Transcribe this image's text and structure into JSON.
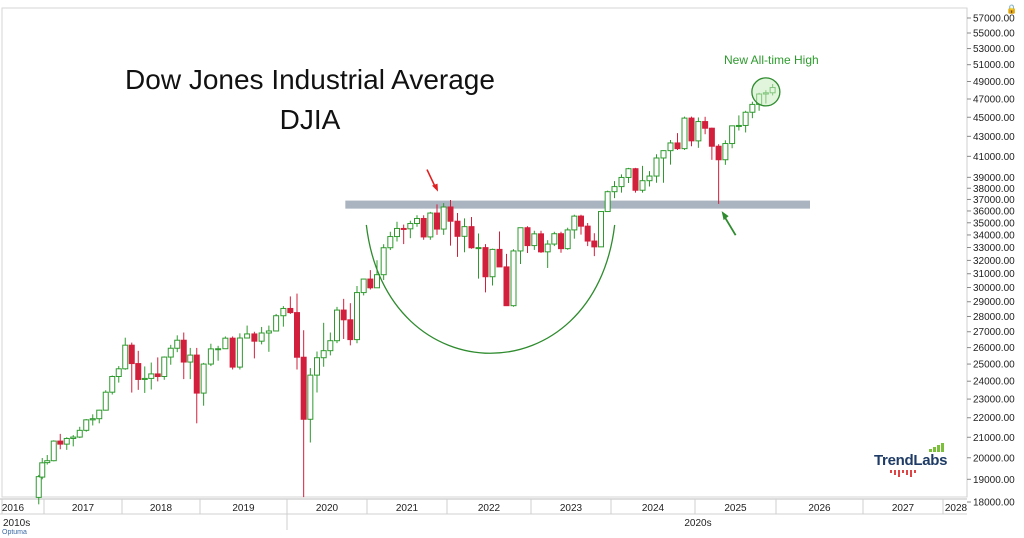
{
  "chart_data": {
    "type": "candlestick",
    "title": "Dow Jones Industrial Average",
    "subtitle": "DJIA",
    "frequency": "monthly",
    "y_axis": {
      "position": "right",
      "ticks": [
        18000,
        19000,
        20000,
        21000,
        22000,
        23000,
        24000,
        25000,
        26000,
        27000,
        28000,
        29000,
        30000,
        31000,
        32000,
        33000,
        34000,
        35000,
        36000,
        37000,
        38000,
        39000,
        41000,
        43000,
        45000,
        47000,
        49000,
        51000,
        53000,
        55000,
        57000
      ],
      "tick_labels": [
        "18000.00",
        "19000.00",
        "20000.00",
        "21000.00",
        "22000.00",
        "23000.00",
        "24000.00",
        "25000.00",
        "26000.00",
        "27000.00",
        "28000.00",
        "29000.00",
        "30000.00",
        "31000.00",
        "32000.00",
        "33000.00",
        "34000.00",
        "35000.00",
        "36000.00",
        "37000.00",
        "38000.00",
        "39000.00",
        "41000.00",
        "43000.00",
        "45000.00",
        "47000.00",
        "49000.00",
        "51000.00",
        "53000.00",
        "55000.00",
        "57000.00"
      ],
      "scale": "log"
    },
    "x_axis": {
      "years": [
        "2016",
        "2017",
        "2018",
        "2019",
        "2020",
        "2021",
        "2022",
        "2023",
        "2024",
        "2025",
        "2026",
        "2027",
        "2028"
      ],
      "decades": [
        "2010s",
        "2020s"
      ]
    },
    "grid": false,
    "candles": [
      {
        "date": "2016-11",
        "o": 18200,
        "h": 19200,
        "l": 17900,
        "c": 19120
      },
      {
        "date": "2016-12",
        "o": 19100,
        "h": 19990,
        "l": 19000,
        "c": 19760
      },
      {
        "date": "2017-01",
        "o": 19770,
        "h": 20130,
        "l": 19680,
        "c": 19860
      },
      {
        "date": "2017-02",
        "o": 19860,
        "h": 20850,
        "l": 19830,
        "c": 20810
      },
      {
        "date": "2017-03",
        "o": 20810,
        "h": 21170,
        "l": 20410,
        "c": 20660
      },
      {
        "date": "2017-04",
        "o": 20660,
        "h": 21000,
        "l": 20380,
        "c": 20940
      },
      {
        "date": "2017-05",
        "o": 20940,
        "h": 21110,
        "l": 20550,
        "c": 21010
      },
      {
        "date": "2017-06",
        "o": 21010,
        "h": 21530,
        "l": 20960,
        "c": 21350
      },
      {
        "date": "2017-07",
        "o": 21350,
        "h": 21930,
        "l": 21280,
        "c": 21890
      },
      {
        "date": "2017-08",
        "o": 21890,
        "h": 22180,
        "l": 21600,
        "c": 21950
      },
      {
        "date": "2017-09",
        "o": 21950,
        "h": 22420,
        "l": 21710,
        "c": 22400
      },
      {
        "date": "2017-10",
        "o": 22400,
        "h": 23490,
        "l": 22380,
        "c": 23380
      },
      {
        "date": "2017-11",
        "o": 23380,
        "h": 24330,
        "l": 23250,
        "c": 24270
      },
      {
        "date": "2017-12",
        "o": 24270,
        "h": 24880,
        "l": 23920,
        "c": 24720
      },
      {
        "date": "2018-01",
        "o": 24720,
        "h": 26620,
        "l": 24660,
        "c": 26150
      },
      {
        "date": "2018-02",
        "o": 26150,
        "h": 26310,
        "l": 23360,
        "c": 25030
      },
      {
        "date": "2018-03",
        "o": 25030,
        "h": 25800,
        "l": 23510,
        "c": 24100
      },
      {
        "date": "2018-04",
        "o": 24100,
        "h": 24860,
        "l": 23340,
        "c": 24160
      },
      {
        "date": "2018-05",
        "o": 24160,
        "h": 25090,
        "l": 23530,
        "c": 24420
      },
      {
        "date": "2018-06",
        "o": 24420,
        "h": 25400,
        "l": 23990,
        "c": 24270
      },
      {
        "date": "2018-07",
        "o": 24270,
        "h": 25460,
        "l": 24080,
        "c": 25420
      },
      {
        "date": "2018-08",
        "o": 25420,
        "h": 26170,
        "l": 24960,
        "c": 25960
      },
      {
        "date": "2018-09",
        "o": 25960,
        "h": 26770,
        "l": 25720,
        "c": 26460
      },
      {
        "date": "2018-10",
        "o": 26460,
        "h": 26950,
        "l": 24120,
        "c": 25120
      },
      {
        "date": "2018-11",
        "o": 25120,
        "h": 25980,
        "l": 24120,
        "c": 25540
      },
      {
        "date": "2018-12",
        "o": 25540,
        "h": 25980,
        "l": 21710,
        "c": 23330
      },
      {
        "date": "2019-01",
        "o": 23330,
        "h": 25070,
        "l": 22640,
        "c": 25000
      },
      {
        "date": "2019-02",
        "o": 25000,
        "h": 26240,
        "l": 24880,
        "c": 25920
      },
      {
        "date": "2019-03",
        "o": 25920,
        "h": 26110,
        "l": 25200,
        "c": 25930
      },
      {
        "date": "2019-04",
        "o": 25930,
        "h": 26700,
        "l": 25990,
        "c": 26590
      },
      {
        "date": "2019-05",
        "o": 26590,
        "h": 26700,
        "l": 24680,
        "c": 24820
      },
      {
        "date": "2019-06",
        "o": 24820,
        "h": 26900,
        "l": 24680,
        "c": 26600
      },
      {
        "date": "2019-07",
        "o": 26600,
        "h": 27400,
        "l": 26600,
        "c": 26860
      },
      {
        "date": "2019-08",
        "o": 26860,
        "h": 27000,
        "l": 25340,
        "c": 26400
      },
      {
        "date": "2019-09",
        "o": 26400,
        "h": 27310,
        "l": 26200,
        "c": 26920
      },
      {
        "date": "2019-10",
        "o": 26920,
        "h": 27400,
        "l": 25740,
        "c": 27050
      },
      {
        "date": "2019-11",
        "o": 27050,
        "h": 28170,
        "l": 27040,
        "c": 28050
      },
      {
        "date": "2019-12",
        "o": 28050,
        "h": 28700,
        "l": 27330,
        "c": 28540
      },
      {
        "date": "2020-01",
        "o": 28540,
        "h": 29370,
        "l": 28170,
        "c": 28260
      },
      {
        "date": "2020-02",
        "o": 28260,
        "h": 29570,
        "l": 24680,
        "c": 25410
      },
      {
        "date": "2020-03",
        "o": 25410,
        "h": 27100,
        "l": 18210,
        "c": 21920
      },
      {
        "date": "2020-04",
        "o": 21920,
        "h": 24760,
        "l": 20740,
        "c": 24350
      },
      {
        "date": "2020-05",
        "o": 24350,
        "h": 25760,
        "l": 23360,
        "c": 25380
      },
      {
        "date": "2020-06",
        "o": 25380,
        "h": 27580,
        "l": 24840,
        "c": 25810
      },
      {
        "date": "2020-07",
        "o": 25810,
        "h": 26950,
        "l": 25520,
        "c": 26430
      },
      {
        "date": "2020-08",
        "o": 26430,
        "h": 28650,
        "l": 26280,
        "c": 28430
      },
      {
        "date": "2020-09",
        "o": 28430,
        "h": 29200,
        "l": 26540,
        "c": 27780
      },
      {
        "date": "2020-10",
        "o": 27780,
        "h": 28900,
        "l": 26140,
        "c": 26500
      },
      {
        "date": "2020-11",
        "o": 26500,
        "h": 30110,
        "l": 26270,
        "c": 29640
      },
      {
        "date": "2020-12",
        "o": 29640,
        "h": 30640,
        "l": 29440,
        "c": 30610
      },
      {
        "date": "2021-01",
        "o": 30610,
        "h": 31270,
        "l": 29860,
        "c": 29980
      },
      {
        "date": "2021-02",
        "o": 29980,
        "h": 32010,
        "l": 29980,
        "c": 30930
      },
      {
        "date": "2021-03",
        "o": 30930,
        "h": 33260,
        "l": 30540,
        "c": 32980
      },
      {
        "date": "2021-04",
        "o": 32980,
        "h": 34260,
        "l": 32800,
        "c": 33870
      },
      {
        "date": "2021-05",
        "o": 33870,
        "h": 35090,
        "l": 33470,
        "c": 34530
      },
      {
        "date": "2021-06",
        "o": 34530,
        "h": 34850,
        "l": 33270,
        "c": 34500
      },
      {
        "date": "2021-07",
        "o": 34500,
        "h": 35170,
        "l": 33740,
        "c": 34940
      },
      {
        "date": "2021-08",
        "o": 34940,
        "h": 35630,
        "l": 34670,
        "c": 35360
      },
      {
        "date": "2021-09",
        "o": 35360,
        "h": 35630,
        "l": 33610,
        "c": 33840
      },
      {
        "date": "2021-10",
        "o": 33840,
        "h": 35920,
        "l": 33610,
        "c": 35820
      },
      {
        "date": "2021-11",
        "o": 35820,
        "h": 36570,
        "l": 34010,
        "c": 34480
      },
      {
        "date": "2021-12",
        "o": 34480,
        "h": 36680,
        "l": 34010,
        "c": 36340
      },
      {
        "date": "2022-01",
        "o": 36340,
        "h": 36950,
        "l": 33150,
        "c": 35130
      },
      {
        "date": "2022-02",
        "o": 35130,
        "h": 35820,
        "l": 32270,
        "c": 33890
      },
      {
        "date": "2022-03",
        "o": 33890,
        "h": 35370,
        "l": 32630,
        "c": 34680
      },
      {
        "date": "2022-04",
        "o": 34680,
        "h": 35490,
        "l": 32900,
        "c": 32980
      },
      {
        "date": "2022-05",
        "o": 32980,
        "h": 34120,
        "l": 30640,
        "c": 32990
      },
      {
        "date": "2022-06",
        "o": 32990,
        "h": 33270,
        "l": 29650,
        "c": 30780
      },
      {
        "date": "2022-07",
        "o": 30780,
        "h": 32910,
        "l": 30140,
        "c": 32850
      },
      {
        "date": "2022-08",
        "o": 32850,
        "h": 34280,
        "l": 31510,
        "c": 31510
      },
      {
        "date": "2022-09",
        "o": 31510,
        "h": 32500,
        "l": 28720,
        "c": 28730
      },
      {
        "date": "2022-10",
        "o": 28730,
        "h": 32860,
        "l": 28660,
        "c": 32730
      },
      {
        "date": "2022-11",
        "o": 32730,
        "h": 34590,
        "l": 31730,
        "c": 34590
      },
      {
        "date": "2022-12",
        "o": 34590,
        "h": 34710,
        "l": 32570,
        "c": 33150
      },
      {
        "date": "2023-01",
        "o": 33150,
        "h": 34340,
        "l": 32810,
        "c": 34090
      },
      {
        "date": "2023-02",
        "o": 34090,
        "h": 34340,
        "l": 32580,
        "c": 32660
      },
      {
        "date": "2023-03",
        "o": 32660,
        "h": 33580,
        "l": 31430,
        "c": 33270
      },
      {
        "date": "2023-04",
        "o": 33270,
        "h": 34260,
        "l": 33110,
        "c": 34100
      },
      {
        "date": "2023-05",
        "o": 34100,
        "h": 34260,
        "l": 32590,
        "c": 32910
      },
      {
        "date": "2023-06",
        "o": 32910,
        "h": 34590,
        "l": 32820,
        "c": 34410
      },
      {
        "date": "2023-07",
        "o": 34410,
        "h": 35680,
        "l": 33700,
        "c": 35560
      },
      {
        "date": "2023-08",
        "o": 35560,
        "h": 35680,
        "l": 34030,
        "c": 34720
      },
      {
        "date": "2023-09",
        "o": 34720,
        "h": 34980,
        "l": 33110,
        "c": 33510
      },
      {
        "date": "2023-10",
        "o": 33510,
        "h": 34140,
        "l": 32330,
        "c": 33050
      },
      {
        "date": "2023-11",
        "o": 33050,
        "h": 35950,
        "l": 33050,
        "c": 35950
      },
      {
        "date": "2023-12",
        "o": 35950,
        "h": 37790,
        "l": 35950,
        "c": 37690
      },
      {
        "date": "2024-01",
        "o": 37690,
        "h": 38650,
        "l": 37120,
        "c": 38150
      },
      {
        "date": "2024-02",
        "o": 38150,
        "h": 39280,
        "l": 37610,
        "c": 38990
      },
      {
        "date": "2024-03",
        "o": 38990,
        "h": 39890,
        "l": 38480,
        "c": 39810
      },
      {
        "date": "2024-04",
        "o": 39810,
        "h": 39890,
        "l": 37610,
        "c": 37820
      },
      {
        "date": "2024-05",
        "o": 37820,
        "h": 40080,
        "l": 37610,
        "c": 38690
      },
      {
        "date": "2024-06",
        "o": 38690,
        "h": 39580,
        "l": 38160,
        "c": 39120
      },
      {
        "date": "2024-07",
        "o": 39120,
        "h": 41200,
        "l": 38500,
        "c": 40840
      },
      {
        "date": "2024-08",
        "o": 40840,
        "h": 41590,
        "l": 38500,
        "c": 41560
      },
      {
        "date": "2024-09",
        "o": 41560,
        "h": 42630,
        "l": 40200,
        "c": 42330
      },
      {
        "date": "2024-10",
        "o": 42330,
        "h": 43330,
        "l": 41620,
        "c": 41760
      },
      {
        "date": "2024-11",
        "o": 41760,
        "h": 45070,
        "l": 41620,
        "c": 44910
      },
      {
        "date": "2024-12",
        "o": 44910,
        "h": 45070,
        "l": 42000,
        "c": 42540
      },
      {
        "date": "2025-01",
        "o": 42540,
        "h": 44980,
        "l": 41840,
        "c": 44540
      },
      {
        "date": "2025-02",
        "o": 44540,
        "h": 45050,
        "l": 43220,
        "c": 43840
      },
      {
        "date": "2025-03",
        "o": 43840,
        "h": 43900,
        "l": 40660,
        "c": 42000
      },
      {
        "date": "2025-04",
        "o": 42000,
        "h": 42200,
        "l": 36610,
        "c": 40670
      },
      {
        "date": "2025-05",
        "o": 40670,
        "h": 42600,
        "l": 40180,
        "c": 42270
      },
      {
        "date": "2025-06",
        "o": 42270,
        "h": 44100,
        "l": 41800,
        "c": 44090
      },
      {
        "date": "2025-07",
        "o": 44090,
        "h": 45200,
        "l": 43600,
        "c": 44130
      },
      {
        "date": "2025-08",
        "o": 44130,
        "h": 45700,
        "l": 43400,
        "c": 45540
      },
      {
        "date": "2025-09",
        "o": 45540,
        "h": 46700,
        "l": 44900,
        "c": 46400
      },
      {
        "date": "2025-10",
        "o": 46400,
        "h": 47700,
        "l": 45700,
        "c": 47560
      },
      {
        "date": "2025-11",
        "o": 47560,
        "h": 48000,
        "l": 46500,
        "c": 47700
      },
      {
        "date": "2025-12",
        "o": 47700,
        "h": 48700,
        "l": 47400,
        "c": 48300
      }
    ],
    "annotations": {
      "resistance_band": {
        "low": 36200,
        "high": 36900,
        "from": "2020-10",
        "to": "2026-01"
      },
      "note": "New All-time High",
      "cup_bottom": 28000
    }
  },
  "colors": {
    "up": "#2e9a2e",
    "down": "#d21f3c",
    "band": "#aab3c0",
    "annotation_green": "#2e8b2e",
    "arrow_red": "#e02020",
    "highlight_fill": "#c8ebbf"
  },
  "branding": {
    "logo_text": "TrendLabs",
    "footer": "Optuma"
  },
  "icons": {
    "top_right": "lock-icon"
  }
}
